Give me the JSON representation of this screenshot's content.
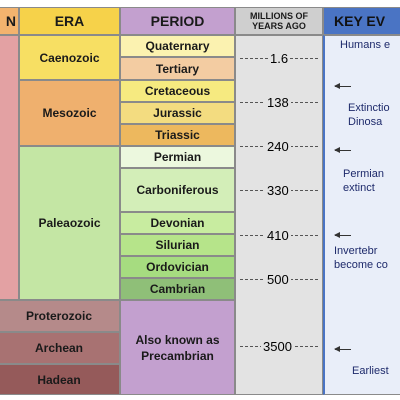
{
  "headers": {
    "eon": "N",
    "era": "ERA",
    "period": "PERIOD",
    "mya": "MILLIONS OF YEARS AGO",
    "events": "KEY EV"
  },
  "eras": {
    "caenozoic": "Caenozoic",
    "mesozoic": "Mesozoic",
    "paleozoic": "Paleaozoic",
    "proterozoic": "Proterozoic",
    "archean": "Archean",
    "hadean": "Hadean"
  },
  "periods": {
    "quaternary": "Quaternary",
    "tertiary": "Tertiary",
    "cretaceous": "Cretaceous",
    "jurassic": "Jurassic",
    "triassic": "Triassic",
    "permian": "Permian",
    "carboniferous": "Carboniferous",
    "devonian": "Devonian",
    "silurian": "Silurian",
    "ordovician": "Ordovician",
    "cambrian": "Cambrian",
    "precambrian": "Also known as Precambrian"
  },
  "mya_marks": [
    "1.6",
    "138",
    "240",
    "330",
    "410",
    "500",
    "3500"
  ],
  "events": {
    "humans": "Humans e",
    "dinosaurs": "Extinctio Dinosa",
    "permian": "Permian extinct",
    "invertebrates": "Invertebr become co",
    "earliest": "Earliest"
  },
  "colors": {
    "eon_column": "#e3a1a3",
    "era_header": "#f6d24a",
    "period_header": "#c3a0cf",
    "mya_header": "#cfcfcf",
    "events_header": "#4a74c4",
    "caenozoic": "#f7df63",
    "mesozoic": "#efb06e",
    "paleozoic": "#c4e6a4",
    "proterozoic": "#b58a8a",
    "archean": "#a87272",
    "hadean": "#955a5a",
    "precambrian": "#c3a0cf"
  }
}
